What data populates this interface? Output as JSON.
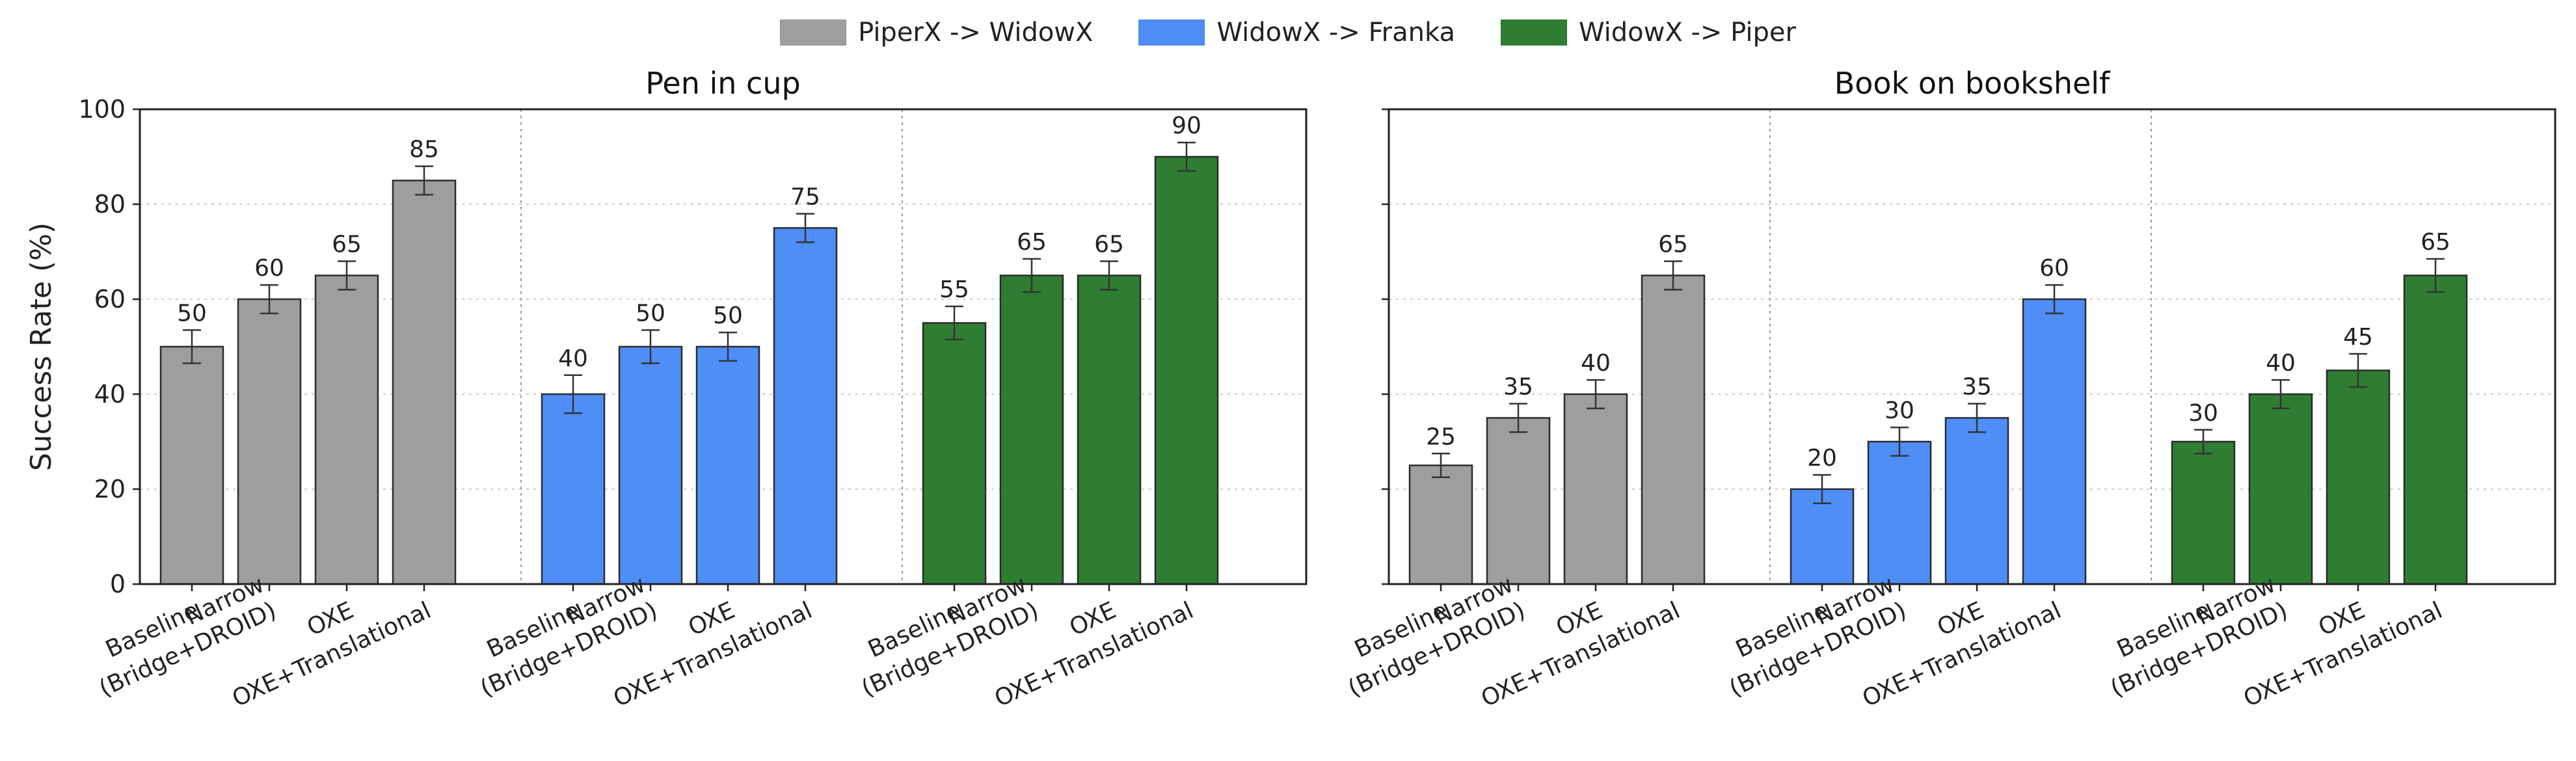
{
  "chart_data": {
    "type": "bar",
    "ylabel": "Success Rate (%)",
    "ylim": [
      0,
      100
    ],
    "yticks": [
      0,
      20,
      40,
      60,
      80,
      100
    ],
    "grid": true,
    "legend_position": "top-center",
    "legend": [
      {
        "name": "PiperX -> WidowX",
        "color": "#9e9e9e"
      },
      {
        "name": "WidowX -> Franka",
        "color": "#4f8ef7"
      },
      {
        "name": "WidowX -> Piper",
        "color": "#2e7d32"
      }
    ],
    "categories": [
      "Baseline",
      "Narrow\n(Bridge+DROID)",
      "OXE",
      "OXE+Translational"
    ],
    "panels": [
      {
        "title": "Pen in cup",
        "groups": [
          {
            "series": "PiperX -> WidowX",
            "values": [
              50,
              60,
              65,
              85
            ],
            "errors": [
              3.5,
              3,
              3,
              3
            ]
          },
          {
            "series": "WidowX -> Franka",
            "values": [
              40,
              50,
              50,
              75
            ],
            "errors": [
              4,
              3.5,
              3,
              3
            ]
          },
          {
            "series": "WidowX -> Piper",
            "values": [
              55,
              65,
              65,
              90
            ],
            "errors": [
              3.5,
              3.5,
              3,
              3
            ]
          }
        ]
      },
      {
        "title": "Book on bookshelf",
        "groups": [
          {
            "series": "PiperX -> WidowX",
            "values": [
              25,
              35,
              40,
              65
            ],
            "errors": [
              2.5,
              3,
              3,
              3
            ]
          },
          {
            "series": "WidowX -> Franka",
            "values": [
              20,
              30,
              35,
              60
            ],
            "errors": [
              3,
              3,
              3,
              3
            ]
          },
          {
            "series": "WidowX -> Piper",
            "values": [
              30,
              40,
              45,
              65
            ],
            "errors": [
              2.5,
              3,
              3.5,
              3.5
            ]
          }
        ]
      }
    ]
  }
}
